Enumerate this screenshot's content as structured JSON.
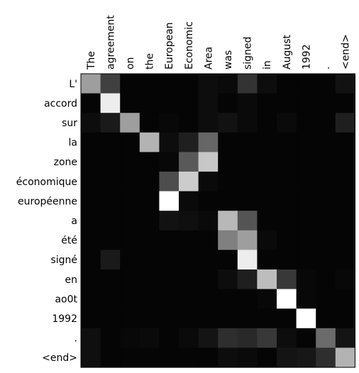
{
  "chart_data": {
    "type": "heatmap",
    "colormap": "gray",
    "x_labels": [
      "The",
      "agreement",
      "on",
      "the",
      "European",
      "Economic",
      "Area",
      "was",
      "signed",
      "in",
      "August",
      "1992",
      ".",
      "<end>"
    ],
    "y_labels": [
      "L'",
      "accord",
      "sur",
      "la",
      "zone",
      "économique",
      "européenne",
      "a",
      "été",
      "signé",
      "en",
      "ao0t",
      "1992",
      ".",
      "<end>"
    ],
    "values": [
      [
        0.62,
        0.25,
        0.02,
        0.02,
        0.02,
        0.02,
        0.05,
        0.04,
        0.2,
        0.05,
        0.02,
        0.02,
        0.02,
        0.07
      ],
      [
        0.02,
        0.93,
        0.02,
        0.02,
        0.02,
        0.02,
        0.05,
        0.02,
        0.04,
        0.02,
        0.02,
        0.02,
        0.02,
        0.02
      ],
      [
        0.05,
        0.1,
        0.62,
        0.02,
        0.03,
        0.02,
        0.05,
        0.07,
        0.04,
        0.02,
        0.04,
        0.02,
        0.02,
        0.12
      ],
      [
        0.02,
        0.02,
        0.02,
        0.7,
        0.05,
        0.12,
        0.4,
        0.02,
        0.02,
        0.02,
        0.02,
        0.02,
        0.02,
        0.02
      ],
      [
        0.02,
        0.02,
        0.02,
        0.02,
        0.03,
        0.35,
        0.78,
        0.02,
        0.02,
        0.02,
        0.02,
        0.02,
        0.02,
        0.02
      ],
      [
        0.02,
        0.02,
        0.02,
        0.02,
        0.3,
        0.8,
        0.04,
        0.02,
        0.02,
        0.02,
        0.02,
        0.02,
        0.02,
        0.02
      ],
      [
        0.02,
        0.02,
        0.02,
        0.02,
        1.0,
        0.04,
        0.02,
        0.02,
        0.02,
        0.02,
        0.02,
        0.02,
        0.02,
        0.02
      ],
      [
        0.02,
        0.02,
        0.02,
        0.02,
        0.07,
        0.06,
        0.04,
        0.72,
        0.33,
        0.02,
        0.02,
        0.02,
        0.02,
        0.02
      ],
      [
        0.02,
        0.02,
        0.02,
        0.02,
        0.02,
        0.02,
        0.02,
        0.5,
        0.62,
        0.04,
        0.02,
        0.02,
        0.02,
        0.02
      ],
      [
        0.02,
        0.1,
        0.02,
        0.02,
        0.02,
        0.02,
        0.02,
        0.02,
        0.93,
        0.02,
        0.02,
        0.02,
        0.02,
        0.02
      ],
      [
        0.02,
        0.02,
        0.02,
        0.02,
        0.02,
        0.02,
        0.02,
        0.05,
        0.12,
        0.74,
        0.22,
        0.03,
        0.02,
        0.03
      ],
      [
        0.02,
        0.02,
        0.02,
        0.02,
        0.02,
        0.02,
        0.02,
        0.02,
        0.02,
        0.03,
        1.0,
        0.03,
        0.02,
        0.02
      ],
      [
        0.02,
        0.02,
        0.02,
        0.02,
        0.02,
        0.02,
        0.02,
        0.02,
        0.02,
        0.02,
        0.02,
        1.0,
        0.02,
        0.02
      ],
      [
        0.06,
        0.02,
        0.03,
        0.04,
        0.02,
        0.04,
        0.08,
        0.18,
        0.16,
        0.22,
        0.05,
        0.02,
        0.42,
        0.08
      ],
      [
        0.06,
        0.02,
        0.02,
        0.02,
        0.02,
        0.02,
        0.02,
        0.05,
        0.04,
        0.02,
        0.08,
        0.09,
        0.18,
        0.7
      ]
    ]
  }
}
